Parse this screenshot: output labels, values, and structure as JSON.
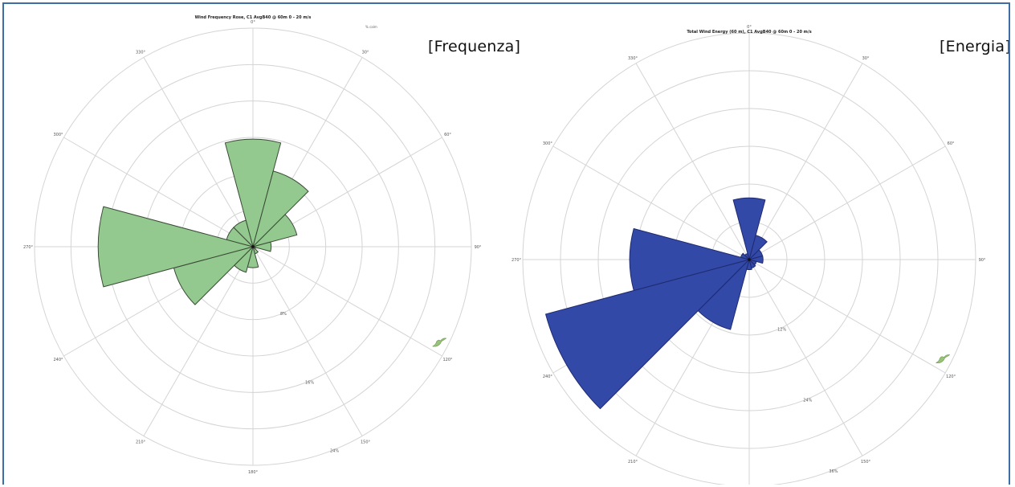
{
  "charts": {
    "left": {
      "tag": "[Frequenza]"
    },
    "right": {
      "tag": "[Energia]"
    }
  },
  "chart_data": [
    {
      "type": "polar-bar",
      "title": "Wind Frequency Rose, C1 AvgB40 @ 60m 0 - 20 m/s",
      "note": "% calm",
      "sector_width_deg": 30,
      "directions_deg": [
        0,
        30,
        60,
        90,
        120,
        150,
        180,
        210,
        240,
        270,
        300,
        330
      ],
      "values": [
        11.8,
        8.6,
        5.0,
        2.0,
        0.3,
        0.8,
        2.3,
        2.9,
        9.0,
        17.0,
        3.0,
        3.0
      ],
      "rings": [
        4,
        8,
        12,
        16,
        20,
        24
      ],
      "ring_labels": [
        "4%",
        "8%",
        "12%",
        "16%",
        "20%",
        "24%"
      ],
      "ylim": [
        0,
        24
      ],
      "angle_labels": [
        "0°",
        "30°",
        "60°",
        "90°",
        "120°",
        "150°",
        "180°",
        "210°",
        "240°",
        "270°",
        "300°",
        "330°"
      ],
      "color": "#93c98f",
      "stroke": "#3a4a36"
    },
    {
      "type": "polar-bar",
      "title": "Total Wind Energy (60 m), C1 AvgB40 @ 60m 0 - 20 m/s",
      "sector_width_deg": 30,
      "directions_deg": [
        0,
        30,
        60,
        90,
        120,
        150,
        180,
        210,
        240,
        270,
        300,
        330
      ],
      "values": [
        9.8,
        4.0,
        2.2,
        2.2,
        1.2,
        1.4,
        1.6,
        11.5,
        33.5,
        19.0,
        1.4,
        1.0
      ],
      "rings": [
        6,
        12,
        18,
        24,
        30,
        36
      ],
      "ring_labels": [
        "6%",
        "12%",
        "18%",
        "24%",
        "30%",
        "36%"
      ],
      "ylim": [
        0,
        36
      ],
      "angle_labels": [
        "0°",
        "30°",
        "60°",
        "90°",
        "120°",
        "150°",
        "180°",
        "210°",
        "240°",
        "270°",
        "300°",
        "330°"
      ],
      "color": "#3349a7",
      "stroke": "#1f2a70"
    }
  ]
}
